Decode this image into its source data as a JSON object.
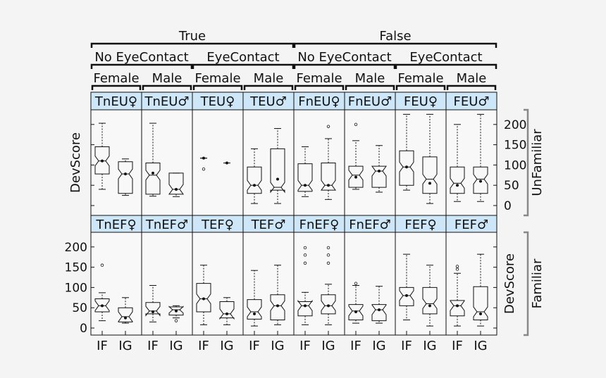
{
  "chart_data": {
    "type": "box",
    "notched": true,
    "headers": {
      "level1": [
        "True",
        "False"
      ],
      "level2": [
        "No EyeContact",
        "EyeContact",
        "No EyeContact",
        "EyeContact"
      ],
      "level3": [
        "Female",
        "Male",
        "Female",
        "Male",
        "Female",
        "Male",
        "Female",
        "Male"
      ]
    },
    "rows": [
      {
        "name": "UnFamiliar",
        "ylabel": "DevScore",
        "yticks": [
          0,
          50,
          100,
          150,
          200
        ],
        "ylim": [
          -10,
          235
        ],
        "panels": [
          {
            "label": "TnEU♀",
            "boxes": [
              {
                "group": "IF",
                "whislo": 40,
                "q1": 78,
                "med": 110,
                "q3": 145,
                "whishi": 203,
                "mean": 110,
                "fliers": []
              },
              {
                "group": "IG",
                "whislo": 25,
                "q1": 30,
                "med": 78,
                "q3": 108,
                "whishi": 115,
                "mean": 78,
                "fliers": []
              }
            ]
          },
          {
            "label": "TnEU♂",
            "boxes": [
              {
                "group": "IF",
                "whislo": 23,
                "q1": 28,
                "med": 75,
                "q3": 105,
                "whishi": 203,
                "mean": 80,
                "fliers": []
              },
              {
                "group": "IG",
                "whislo": 22,
                "q1": 28,
                "med": 40,
                "q3": 80,
                "whishi": 80,
                "mean": 40,
                "fliers": []
              }
            ]
          },
          {
            "label": "TEU♀",
            "boxes": [
              {
                "group": "IF",
                "whislo": 117,
                "q1": 117,
                "med": 117,
                "q3": 117,
                "whishi": 117,
                "mean": 117,
                "fliers": [
                  90
                ]
              },
              {
                "group": "IG",
                "whislo": 105,
                "q1": 105,
                "med": 105,
                "q3": 105,
                "whishi": 105,
                "mean": 105,
                "fliers": []
              }
            ]
          },
          {
            "label": "TEU♂",
            "boxes": [
              {
                "group": "IF",
                "whislo": 5,
                "q1": 30,
                "med": 50,
                "q3": 95,
                "whishi": 140,
                "mean": 50,
                "fliers": []
              },
              {
                "group": "IG",
                "whislo": 5,
                "q1": 38,
                "med": 45,
                "q3": 140,
                "whishi": 190,
                "mean": 65,
                "fliers": []
              }
            ]
          },
          {
            "label": "FnEU♀",
            "boxes": [
              {
                "group": "IF",
                "whislo": 22,
                "q1": 35,
                "med": 50,
                "q3": 103,
                "whishi": 145,
                "mean": 50,
                "fliers": []
              },
              {
                "group": "IG",
                "whislo": 15,
                "q1": 38,
                "med": 50,
                "q3": 105,
                "whishi": 165,
                "mean": 50,
                "fliers": [
                  195
                ]
              }
            ]
          },
          {
            "label": "FnEU♂",
            "boxes": [
              {
                "group": "IF",
                "whislo": 40,
                "q1": 45,
                "med": 75,
                "q3": 97,
                "whishi": 160,
                "mean": 70,
                "fliers": [
                  200
                ]
              },
              {
                "group": "IG",
                "whislo": 33,
                "q1": 45,
                "med": 85,
                "q3": 97,
                "whishi": 148,
                "mean": 85,
                "fliers": []
              }
            ]
          },
          {
            "label": "FEU♀",
            "boxes": [
              {
                "group": "IF",
                "whislo": 38,
                "q1": 50,
                "med": 95,
                "q3": 135,
                "whishi": 225,
                "mean": 95,
                "fliers": []
              },
              {
                "group": "IG",
                "whislo": 5,
                "q1": 30,
                "med": 65,
                "q3": 120,
                "whishi": 225,
                "mean": 55,
                "fliers": []
              }
            ]
          },
          {
            "label": "FEU♂",
            "boxes": [
              {
                "group": "IF",
                "whislo": 10,
                "q1": 30,
                "med": 55,
                "q3": 95,
                "whishi": 200,
                "mean": 50,
                "fliers": []
              },
              {
                "group": "IG",
                "whislo": 10,
                "q1": 30,
                "med": 65,
                "q3": 95,
                "whishi": 225,
                "mean": 60,
                "fliers": []
              }
            ]
          }
        ]
      },
      {
        "name": "Familiar",
        "ylabel": "DevScore",
        "yticks": [
          0,
          50,
          100,
          150,
          200
        ],
        "ylim": [
          -10,
          235
        ],
        "panels": [
          {
            "label": "TnEF♀",
            "boxes": [
              {
                "group": "IF",
                "whislo": 18,
                "q1": 40,
                "med": 55,
                "q3": 72,
                "whishi": 87,
                "mean": 55,
                "fliers": [
                  155
                ]
              },
              {
                "group": "IG",
                "whislo": 12,
                "q1": 15,
                "med": 28,
                "q3": 50,
                "whishi": 75,
                "mean": 25,
                "fliers": []
              }
            ]
          },
          {
            "label": "TnEF♂",
            "boxes": [
              {
                "group": "IF",
                "whislo": 15,
                "q1": 35,
                "med": 42,
                "q3": 63,
                "whishi": 105,
                "mean": 40,
                "fliers": []
              },
              {
                "group": "IG",
                "whislo": 25,
                "q1": 32,
                "med": 45,
                "q3": 52,
                "whishi": 55,
                "mean": 42,
                "fliers": [
                  18
                ]
              }
            ]
          },
          {
            "label": "TEF♀",
            "boxes": [
              {
                "group": "IF",
                "whislo": 8,
                "q1": 40,
                "med": 72,
                "q3": 110,
                "whishi": 155,
                "mean": 72,
                "fliers": []
              },
              {
                "group": "IG",
                "whislo": 8,
                "q1": 25,
                "med": 35,
                "q3": 65,
                "whishi": 75,
                "mean": 35,
                "fliers": []
              }
            ]
          },
          {
            "label": "TEF♂",
            "boxes": [
              {
                "group": "IF",
                "whislo": 5,
                "q1": 22,
                "med": 40,
                "q3": 70,
                "whishi": 142,
                "mean": 35,
                "fliers": []
              },
              {
                "group": "IG",
                "whislo": 8,
                "q1": 20,
                "med": 55,
                "q3": 82,
                "whishi": 155,
                "mean": 55,
                "fliers": []
              }
            ]
          },
          {
            "label": "FnEF♀",
            "boxes": [
              {
                "group": "IF",
                "whislo": 8,
                "q1": 30,
                "med": 55,
                "q3": 65,
                "whishi": 88,
                "mean": 55,
                "fliers": [
                  160,
                  180,
                  198
                ]
              },
              {
                "group": "IG",
                "whislo": 8,
                "q1": 35,
                "med": 55,
                "q3": 82,
                "whishi": 108,
                "mean": 55,
                "fliers": [
                  160,
                  180,
                  198
                ]
              }
            ]
          },
          {
            "label": "FnEF♂",
            "boxes": [
              {
                "group": "IF",
                "whislo": 12,
                "q1": 20,
                "med": 42,
                "q3": 58,
                "whishi": 105,
                "mean": 40,
                "fliers": [
                  110
                ]
              },
              {
                "group": "IG",
                "whislo": 12,
                "q1": 18,
                "med": 45,
                "q3": 58,
                "whishi": 103,
                "mean": 45,
                "fliers": []
              }
            ]
          },
          {
            "label": "FEF♀",
            "boxes": [
              {
                "group": "IF",
                "whislo": 20,
                "q1": 55,
                "med": 80,
                "q3": 100,
                "whishi": 182,
                "mean": 80,
                "fliers": []
              },
              {
                "group": "IG",
                "whislo": 5,
                "q1": 35,
                "med": 60,
                "q3": 100,
                "whishi": 155,
                "mean": 55,
                "fliers": []
              }
            ]
          },
          {
            "label": "FEF♂",
            "boxes": [
              {
                "group": "IF",
                "whislo": 5,
                "q1": 30,
                "med": 55,
                "q3": 68,
                "whishi": 135,
                "mean": 55,
                "fliers": [
                  145,
                  152
                ]
              },
              {
                "group": "IG",
                "whislo": 5,
                "q1": 20,
                "med": 40,
                "q3": 102,
                "whishi": 182,
                "mean": 35,
                "fliers": []
              }
            ]
          }
        ]
      }
    ],
    "xticks": [
      "IF",
      "IG"
    ],
    "colors": {
      "background": "#f4f4f4",
      "panel": "#f8f8f8",
      "header": "#cde6f8",
      "line": "#111111",
      "bracket": "#888888"
    }
  }
}
